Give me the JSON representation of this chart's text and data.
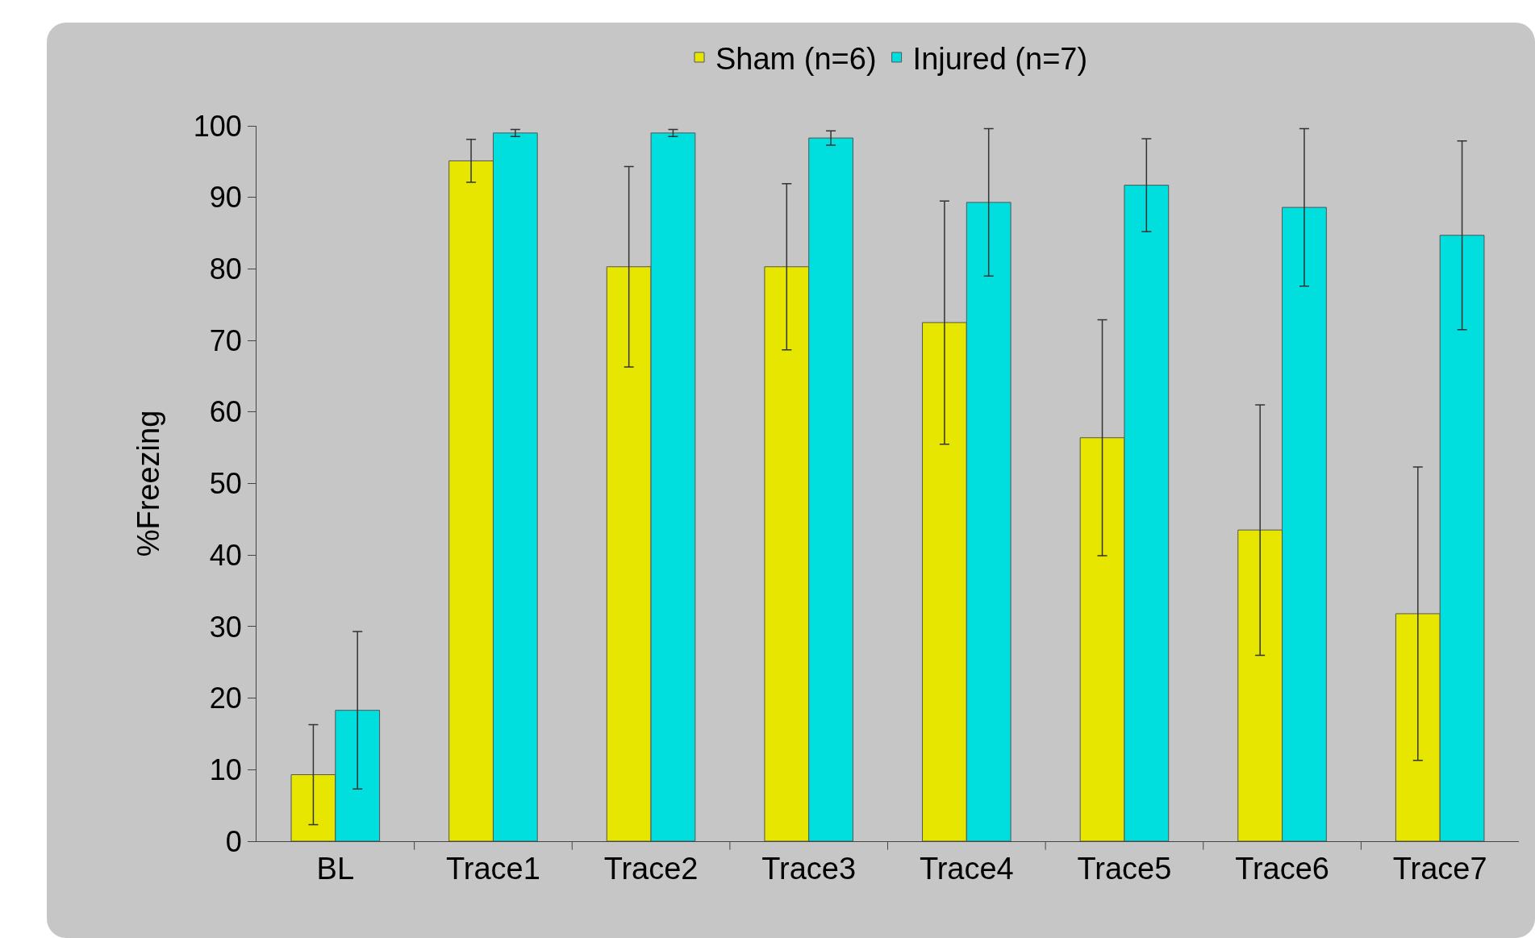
{
  "chart_data": {
    "type": "bar",
    "ylabel": "%Freezing",
    "categories": [
      "BL",
      "Trace1",
      "Trace2",
      "Trace3",
      "Trace4",
      "Trace5",
      "Trace6",
      "Trace7"
    ],
    "series": [
      {
        "name": "Sham (n=6)",
        "color": "#e6e600",
        "values": [
          9.3,
          95.1,
          80.3,
          80.3,
          72.5,
          56.4,
          43.5,
          31.8
        ],
        "errors": [
          7,
          3,
          14,
          11.6,
          17,
          16.5,
          17.5,
          20.5
        ]
      },
      {
        "name": "Injured (n=7)",
        "color": "#00dede",
        "values": [
          18.3,
          99,
          99,
          98.3,
          89.3,
          91.7,
          88.6,
          84.7
        ],
        "errors": [
          11,
          0.5,
          0.5,
          1,
          10.3,
          6.5,
          11,
          13.2
        ]
      }
    ],
    "ylim": [
      0,
      100
    ],
    "yticks": [
      0,
      10,
      20,
      30,
      40,
      50,
      60,
      70,
      80,
      90,
      100
    ],
    "grid": false,
    "legend": "top"
  }
}
